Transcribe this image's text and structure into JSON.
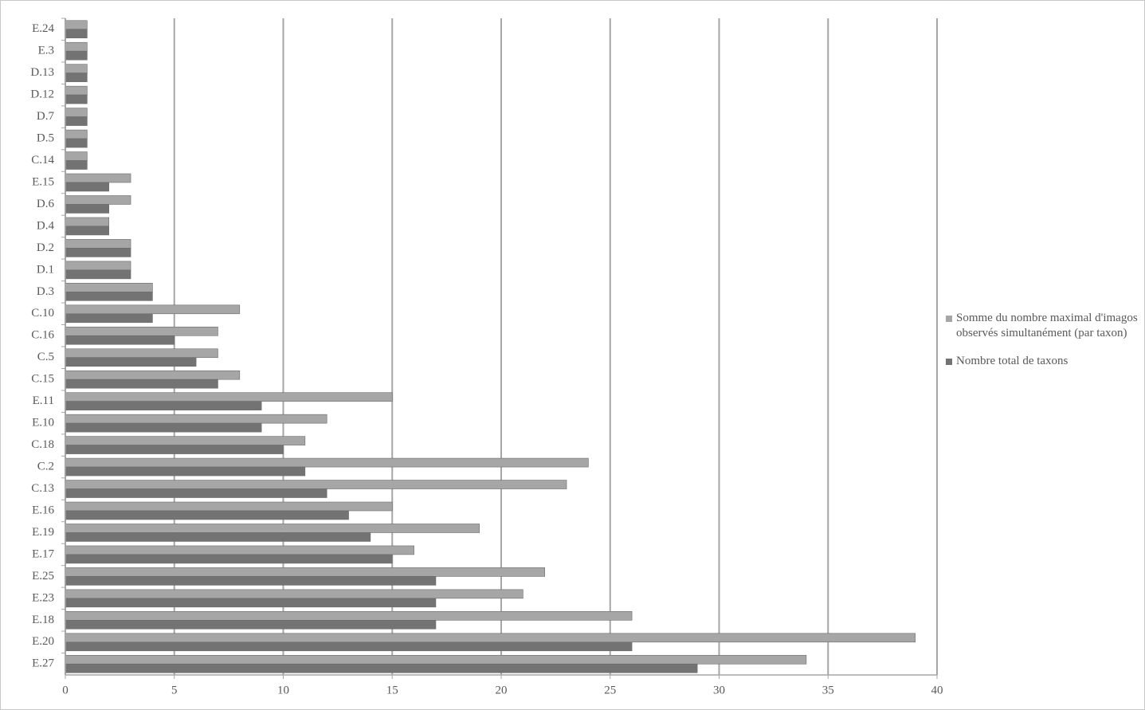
{
  "chart_data": {
    "type": "hbar",
    "categories": [
      "E.24",
      "E.3",
      "D.13",
      "D.12",
      "D.7",
      "D.5",
      "C.14",
      "E.15",
      "D.6",
      "D.4",
      "D.2",
      "D.1",
      "D.3",
      "C.10",
      "C.16",
      "C.5",
      "C.15",
      "E.11",
      "E.10",
      "C.18",
      "C.2",
      "C.13",
      "E.16",
      "E.19",
      "E.17",
      "E.25",
      "E.23",
      "E.18",
      "E.20",
      "E.27"
    ],
    "series": [
      {
        "name": "Somme du nombre maximal d'imagos observés simultanément (par taxon)",
        "color": "#a6a6a6",
        "values": [
          1,
          1,
          1,
          1,
          1,
          1,
          1,
          3,
          3,
          2,
          3,
          3,
          4,
          8,
          7,
          7,
          8,
          15,
          12,
          11,
          24,
          23,
          15,
          19,
          16,
          22,
          21,
          26,
          39,
          34
        ]
      },
      {
        "name": "Nombre total de taxons",
        "color": "#737373",
        "values": [
          1,
          1,
          1,
          1,
          1,
          1,
          1,
          2,
          2,
          2,
          3,
          3,
          4,
          4,
          5,
          6,
          7,
          9,
          9,
          10,
          11,
          12,
          13,
          14,
          15,
          17,
          17,
          17,
          26,
          29
        ]
      }
    ],
    "xlim": [
      0,
      40
    ],
    "xticks": [
      0,
      5,
      10,
      15,
      20,
      25,
      30,
      35,
      40
    ],
    "grid": true,
    "legend": "right"
  }
}
